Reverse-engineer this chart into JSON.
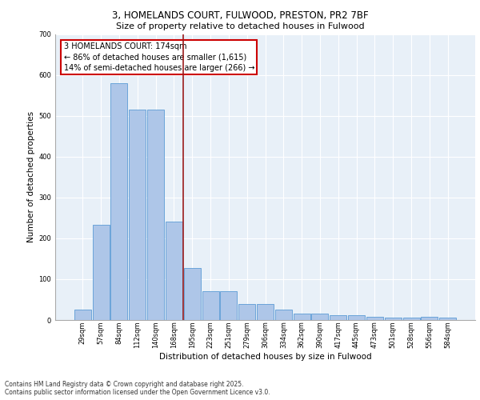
{
  "title_line1": "3, HOMELANDS COURT, FULWOOD, PRESTON, PR2 7BF",
  "title_line2": "Size of property relative to detached houses in Fulwood",
  "xlabel": "Distribution of detached houses by size in Fulwood",
  "ylabel": "Number of detached properties",
  "footer_line1": "Contains HM Land Registry data © Crown copyright and database right 2025.",
  "footer_line2": "Contains public sector information licensed under the Open Government Licence v3.0.",
  "annotation_line1": "3 HOMELANDS COURT: 174sqm",
  "annotation_line2": "← 86% of detached houses are smaller (1,615)",
  "annotation_line3": "14% of semi-detached houses are larger (266) →",
  "bar_labels": [
    "29sqm",
    "57sqm",
    "84sqm",
    "112sqm",
    "140sqm",
    "168sqm",
    "195sqm",
    "223sqm",
    "251sqm",
    "279sqm",
    "306sqm",
    "334sqm",
    "362sqm",
    "390sqm",
    "417sqm",
    "445sqm",
    "473sqm",
    "501sqm",
    "528sqm",
    "556sqm",
    "584sqm"
  ],
  "bar_values": [
    25,
    233,
    580,
    515,
    515,
    240,
    127,
    70,
    70,
    40,
    40,
    25,
    15,
    15,
    11,
    11,
    7,
    5,
    5,
    8,
    5
  ],
  "bar_color": "#aec6e8",
  "bar_edge_color": "#5b9bd5",
  "vline_x": 5.5,
  "marker_color": "#9b1c1c",
  "ylim": [
    0,
    700
  ],
  "yticks": [
    0,
    100,
    200,
    300,
    400,
    500,
    600,
    700
  ],
  "bg_color": "#e8f0f8",
  "grid_color": "#ffffff",
  "annotation_box_color": "#ffffff",
  "annotation_box_edge": "#cc0000",
  "title_fontsize": 8.5,
  "subtitle_fontsize": 8,
  "tick_fontsize": 6,
  "ylabel_fontsize": 7.5,
  "xlabel_fontsize": 7.5,
  "footer_fontsize": 5.5,
  "ann_fontsize": 7
}
